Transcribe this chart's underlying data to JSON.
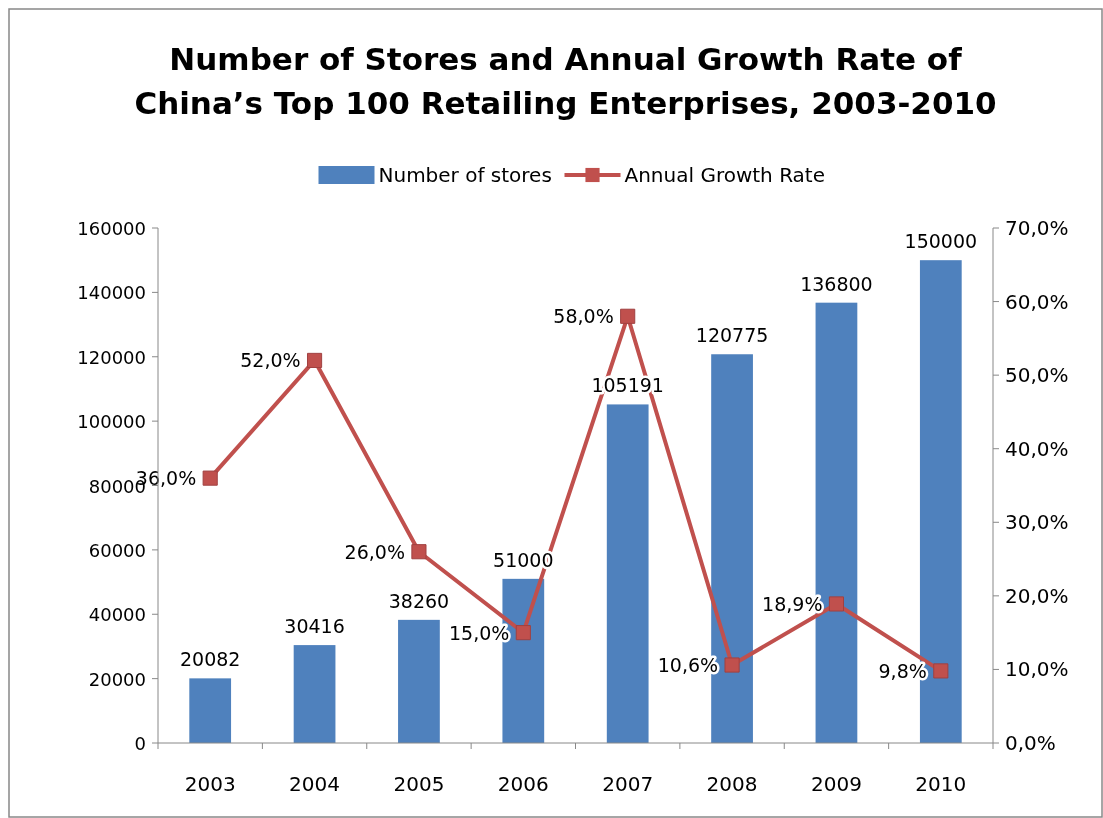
{
  "chart_data": {
    "type": "bar",
    "title": "Number of Stores and Annual Growth Rate of China’s Top 100 Retailing Enterprises, 2003-2010",
    "categories": [
      "2003",
      "2004",
      "2005",
      "2006",
      "2007",
      "2008",
      "2009",
      "2010"
    ],
    "series": [
      {
        "name": "Number of stores",
        "color": "#4f81bd",
        "values": [
          20082,
          30416,
          38260,
          51000,
          105191,
          120775,
          136800,
          150000
        ],
        "value_labels": [
          "20082",
          "30416",
          "38260",
          "51000",
          "105191",
          "120775",
          "136800",
          "150000"
        ]
      },
      {
        "name": "Annual Growth Rate",
        "type": "line",
        "axis": "y2",
        "color": "#c0504d",
        "marker": "square",
        "values": [
          36.0,
          52.0,
          26.0,
          15.0,
          58.0,
          10.6,
          18.9,
          9.8
        ],
        "value_labels": [
          "36,0%",
          "52,0%",
          "26,0%",
          "15,0%",
          "58,0%",
          "10,6%",
          "18,9%",
          "9,8%"
        ]
      }
    ],
    "ylim": [
      0,
      160000
    ],
    "yticks": [
      0,
      20000,
      40000,
      60000,
      80000,
      100000,
      120000,
      140000,
      160000
    ],
    "y2lim": [
      0,
      70
    ],
    "y2ticks": [
      {
        "value": 0,
        "label": "0,0%"
      },
      {
        "value": 10,
        "label": "10,0%"
      },
      {
        "value": 20,
        "label": "20,0%"
      },
      {
        "value": 30,
        "label": "30,0%"
      },
      {
        "value": 40,
        "label": "40,0%"
      },
      {
        "value": 50,
        "label": "50,0%"
      },
      {
        "value": 60,
        "label": "60,0%"
      },
      {
        "value": 70,
        "label": "70,0%"
      }
    ],
    "legend": "top",
    "grid": false
  }
}
